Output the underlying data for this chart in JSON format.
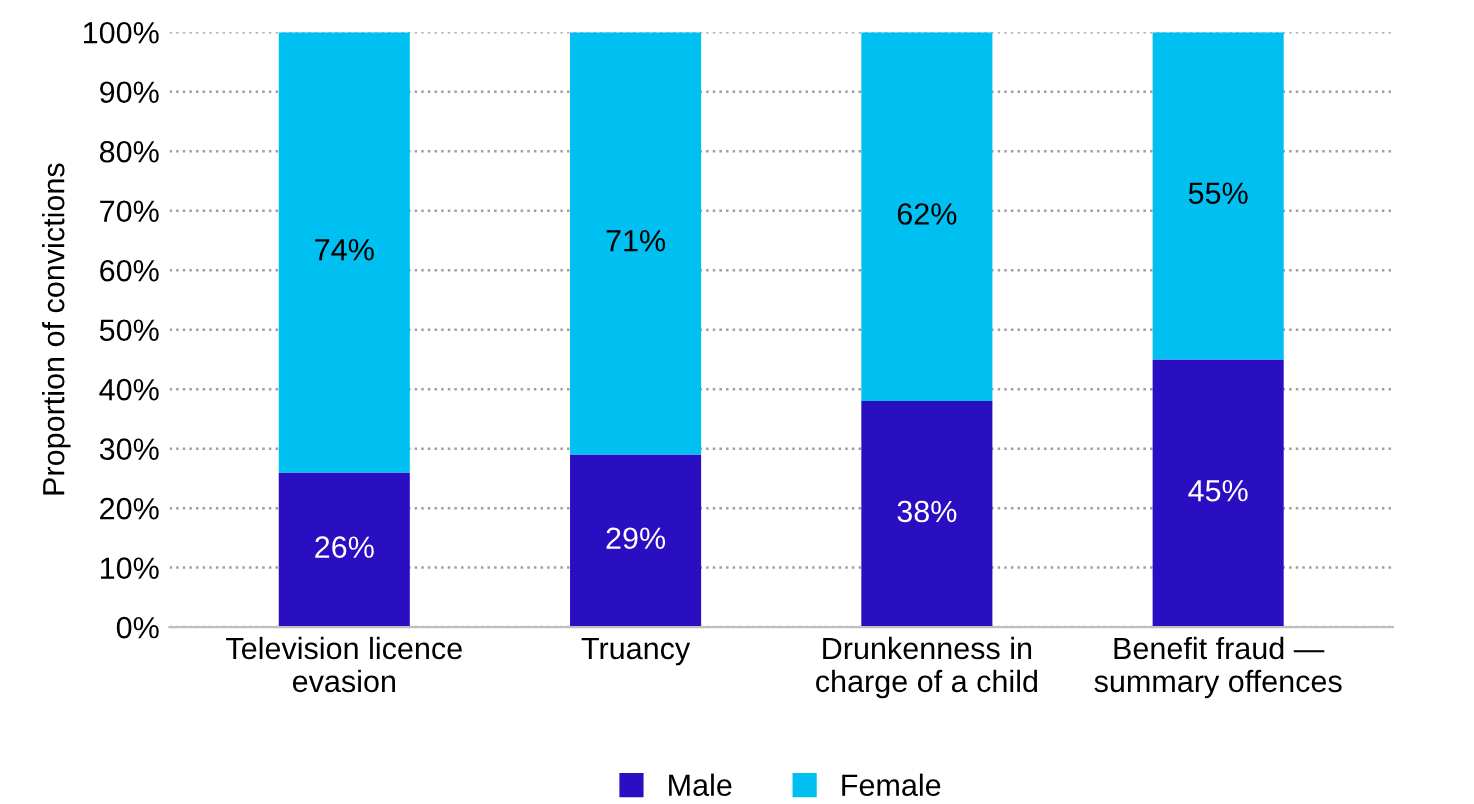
{
  "chart_data": {
    "type": "bar",
    "stacked": true,
    "categories": [
      "Television licence\nevasion",
      "Truancy",
      "Drunkenness in\ncharge of a child",
      "Benefit fraud —\nsummary offences"
    ],
    "series": [
      {
        "name": "Male",
        "color": "#2a0fc2",
        "values": [
          26,
          29,
          38,
          45
        ],
        "value_labels": [
          "26%",
          "29%",
          "38%",
          "45%"
        ]
      },
      {
        "name": "Female",
        "color": "#00c0f2",
        "values": [
          74,
          71,
          62,
          55
        ],
        "value_labels": [
          "74%",
          "71%",
          "62%",
          "55%"
        ]
      }
    ],
    "ylabel": "Proportion of convictions",
    "ylim": [
      0,
      100
    ],
    "yticks": [
      {
        "value": 0,
        "label": "0%"
      },
      {
        "value": 10,
        "label": "10%"
      },
      {
        "value": 20,
        "label": "20%"
      },
      {
        "value": 30,
        "label": "30%"
      },
      {
        "value": 40,
        "label": "40%"
      },
      {
        "value": 50,
        "label": "50%"
      },
      {
        "value": 60,
        "label": "60%"
      },
      {
        "value": 70,
        "label": "70%"
      },
      {
        "value": 80,
        "label": "80%"
      },
      {
        "value": 90,
        "label": "90%"
      },
      {
        "value": 100,
        "label": "100%"
      }
    ],
    "grid": "y",
    "legend": "bottom"
  }
}
